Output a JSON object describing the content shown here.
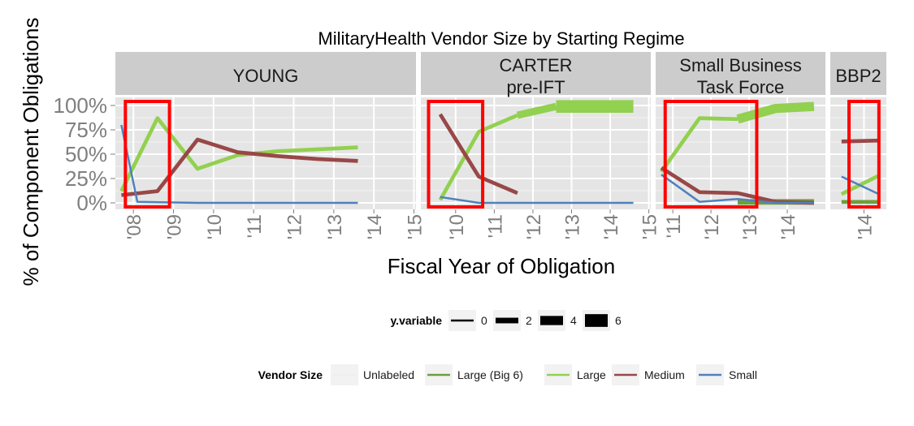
{
  "chart_data": {
    "type": "line",
    "title": "MilitaryHealth Vendor Size by Starting Regime",
    "xlabel": "Fiscal Year of Obligation",
    "ylabel": "% of Component Obligations",
    "ylim": [
      0,
      1
    ],
    "yticks": [
      0,
      0.25,
      0.5,
      0.75,
      1.0
    ],
    "ytick_labels": [
      "0%",
      "25%",
      "50%",
      "75%",
      "100%"
    ],
    "grid": true,
    "colors": {
      "Unlabeled": "#eeeeee",
      "Large (Big 6)": "#6e9f3a",
      "Large": "#92d050",
      "Medium": "#984848",
      "Small": "#4f81bd",
      "highlight": "#ff0000",
      "strip": "#cccccc",
      "panel": "#e5e5e5"
    },
    "panels": [
      {
        "label_lines": [
          "YOUNG"
        ],
        "x_ticks": [
          2008,
          2009,
          2010,
          2011,
          2012,
          2013,
          2014,
          2015
        ],
        "x_tick_labels": [
          "'08",
          "'09",
          "'10",
          "'11",
          "'12",
          "'13",
          "'14",
          "'15"
        ],
        "highlight_x": [
          2007.8,
          2008.9
        ],
        "series": [
          {
            "name": "Large",
            "x": [
              2007.7,
              2008.6,
              2009.6,
              2010.6,
              2011.6,
              2012.6,
              2013.6
            ],
            "y": [
              0.12,
              0.87,
              0.35,
              0.49,
              0.53,
              0.55,
              0.57
            ],
            "size": 1
          },
          {
            "name": "Medium",
            "x": [
              2007.7,
              2008.6,
              2009.6,
              2010.6,
              2011.6,
              2012.6,
              2013.6
            ],
            "y": [
              0.08,
              0.12,
              0.65,
              0.52,
              0.48,
              0.45,
              0.43
            ],
            "size": 1
          },
          {
            "name": "Small",
            "x": [
              2007.7,
              2008.1,
              2009.6,
              2010.6,
              2011.6,
              2012.6,
              2013.6
            ],
            "y": [
              0.8,
              0.01,
              0.0,
              0.0,
              0.0,
              0.0,
              0.0
            ],
            "size": 0
          }
        ]
      },
      {
        "label_lines": [
          "CARTER",
          "pre-IFT"
        ],
        "x_ticks": [
          2010,
          2011,
          2012,
          2013,
          2014,
          2015
        ],
        "x_tick_labels": [
          "'10",
          "'11",
          "'12",
          "'13",
          "'14",
          "'15"
        ],
        "highlight_x": [
          2009.3,
          2010.7
        ],
        "series": [
          {
            "name": "Large",
            "x": [
              2009.6,
              2010.6,
              2011.6
            ],
            "y": [
              0.03,
              0.73,
              0.9
            ],
            "size": 1
          },
          {
            "name": "Large",
            "x": [
              2011.6,
              2012.6
            ],
            "y": [
              0.9,
              0.99
            ],
            "size": 3
          },
          {
            "name": "Large",
            "x": [
              2012.6,
              2013.6,
              2014.6
            ],
            "y": [
              0.99,
              0.99,
              0.99
            ],
            "size": 6
          },
          {
            "name": "Medium",
            "x": [
              2009.6,
              2010.6,
              2011.6
            ],
            "y": [
              0.91,
              0.27,
              0.1
            ],
            "size": 1
          },
          {
            "name": "Small",
            "x": [
              2009.6,
              2010.6,
              2011.6,
              2012.6,
              2013.6,
              2014.6
            ],
            "y": [
              0.06,
              0.0,
              0.0,
              0.0,
              0.0,
              0.0
            ],
            "size": 0
          }
        ]
      },
      {
        "label_lines": [
          "Small Business",
          "Task Force"
        ],
        "x_ticks": [
          2011,
          2012,
          2013,
          2014
        ],
        "x_tick_labels": [
          "'11",
          "'12",
          "'13",
          "'14"
        ],
        "highlight_x": [
          2010.8,
          2013.2
        ],
        "series": [
          {
            "name": "Large",
            "x": [
              2010.7,
              2011.7,
              2012.7
            ],
            "y": [
              0.32,
              0.87,
              0.86
            ],
            "size": 1
          },
          {
            "name": "Large",
            "x": [
              2012.7,
              2013.7,
              2014.7
            ],
            "y": [
              0.86,
              0.97,
              0.99
            ],
            "size": 4
          },
          {
            "name": "Large (Big 6)",
            "x": [
              2012.7,
              2013.7,
              2014.7
            ],
            "y": [
              0.01,
              0.01,
              0.01
            ],
            "size": 2
          },
          {
            "name": "Medium",
            "x": [
              2010.7,
              2011.7,
              2012.7,
              2013.7,
              2014.7
            ],
            "y": [
              0.36,
              0.11,
              0.1,
              0.01,
              0.0
            ],
            "size": 1
          },
          {
            "name": "Small",
            "x": [
              2010.7,
              2011.7,
              2012.7,
              2013.7,
              2014.7
            ],
            "y": [
              0.29,
              0.01,
              0.04,
              0.0,
              0.0
            ],
            "size": 0
          }
        ]
      },
      {
        "label_lines": [
          "BBP2"
        ],
        "x_ticks": [
          2014
        ],
        "x_tick_labels": [
          "'14"
        ],
        "highlight_x": [
          2013.8,
          2014.2
        ],
        "series": [
          {
            "name": "Large",
            "x": [
              2013.7,
              2014.2
            ],
            "y": [
              0.09,
              0.28
            ],
            "size": 1
          },
          {
            "name": "Large (Big 6)",
            "x": [
              2013.7,
              2014.2
            ],
            "y": [
              0.01,
              0.01
            ],
            "size": 1
          },
          {
            "name": "Medium",
            "x": [
              2013.7,
              2014.2
            ],
            "y": [
              0.63,
              0.64
            ],
            "size": 1
          },
          {
            "name": "Small",
            "x": [
              2013.7,
              2014.2
            ],
            "y": [
              0.27,
              0.09
            ],
            "size": 0
          }
        ]
      }
    ],
    "legend_size": {
      "title": "y.variable",
      "values": [
        0,
        2,
        4,
        6
      ],
      "labels": [
        "0",
        "2",
        "4",
        "6"
      ],
      "placement": "bottom"
    },
    "legend_color": {
      "title": "Vendor Size",
      "entries": [
        "Unlabeled",
        "Large (Big 6)",
        "Large",
        "Medium",
        "Small"
      ],
      "placement": "bottom"
    }
  }
}
